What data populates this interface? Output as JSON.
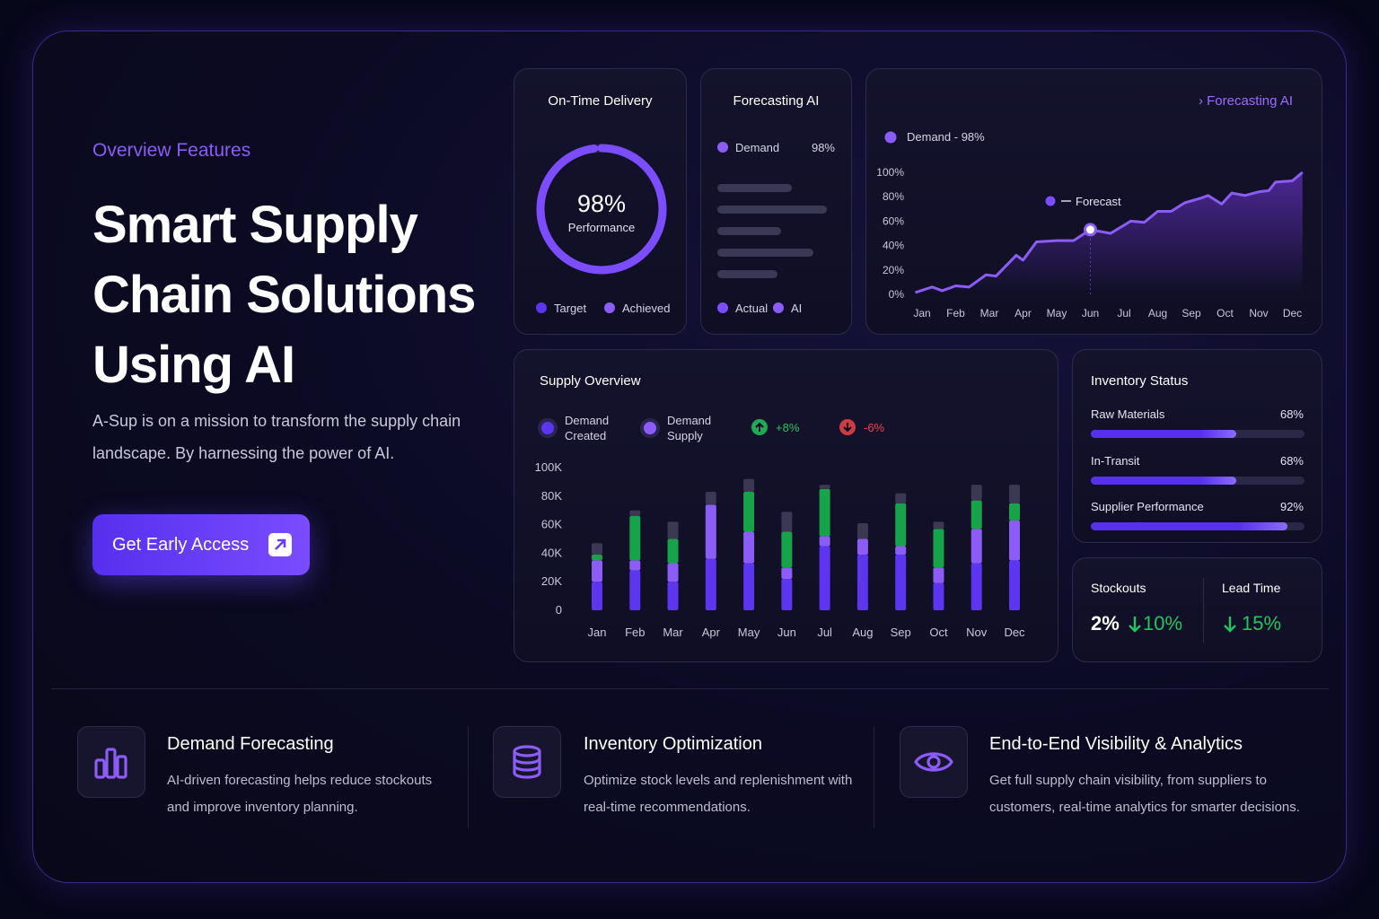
{
  "hero": {
    "eyebrow": "Overview Features",
    "title_lines": [
      "Smart Supply",
      "Chain Solutions",
      "Using AI"
    ],
    "description": "A-Sup is on a mission to transform the supply chain landscape. By harnessing the power of AI.",
    "cta": "Get Early Access"
  },
  "on_time_delivery": {
    "title": "On-Time Delivery",
    "value": 98,
    "value_label": "98%",
    "caption": "Performance",
    "color": "#7c4dff",
    "legend": [
      {
        "name": "Target",
        "color": "#5b35f0"
      },
      {
        "name": "Achieved",
        "color": "#8b5cf6"
      }
    ]
  },
  "forecasting_ai": {
    "title": "Forecasting AI",
    "metric": {
      "name": "Demand",
      "label": "98%",
      "color": "#8b5cf6"
    },
    "legend": [
      {
        "name": "Actual",
        "color": "#7c4dff"
      },
      {
        "name": "AI",
        "color": "#8b5cf6"
      }
    ]
  },
  "chart_data": [
    {
      "type": "line",
      "link": "Forecasting AI",
      "annotation": {
        "text": "Forecast",
        "x": 5,
        "y": 53
      },
      "x": [
        -0.2,
        0.3,
        0.6,
        1.0,
        1.4,
        1.9,
        2.2,
        2.8,
        3.0,
        3.4,
        4.0,
        4.5,
        5.0,
        5.6,
        6.2,
        6.6,
        7.0,
        7.4,
        7.8,
        8.3,
        8.5,
        8.9,
        9.2,
        9.6,
        10.0,
        10.3,
        10.5,
        11.0,
        11.3
      ],
      "series": [
        {
          "name": "Demand - 98%",
          "color": "#8b5cf6",
          "values": [
            1.5,
            6,
            3,
            7,
            6,
            16,
            15,
            32,
            28,
            43,
            44,
            44,
            53,
            50,
            60,
            59,
            68,
            68,
            75,
            79,
            81,
            74,
            83,
            81,
            84,
            85,
            92,
            93,
            100
          ]
        }
      ],
      "xlim": [
        -0.3,
        11.3
      ],
      "xticks": [
        {
          "value": 0,
          "label": "Jan"
        },
        {
          "value": 1,
          "label": "Feb"
        },
        {
          "value": 2,
          "label": "Mar"
        },
        {
          "value": 3,
          "label": "Apr"
        },
        {
          "value": 4,
          "label": "May"
        },
        {
          "value": 5,
          "label": "Jun"
        },
        {
          "value": 6,
          "label": "Jul"
        },
        {
          "value": 7,
          "label": "Aug"
        },
        {
          "value": 8,
          "label": "Sep"
        },
        {
          "value": 9,
          "label": "Oct"
        },
        {
          "value": 10,
          "label": "Nov"
        },
        {
          "value": 11,
          "label": "Dec"
        }
      ],
      "ylim": [
        0,
        100
      ],
      "yticks": [
        {
          "value": 0,
          "label": "0%"
        },
        {
          "value": 20,
          "label": "20%"
        },
        {
          "value": 40,
          "label": "40%"
        },
        {
          "value": 60,
          "label": "60%"
        },
        {
          "value": 80,
          "label": "80%"
        },
        {
          "value": 100,
          "label": "100%"
        }
      ]
    },
    {
      "type": "bar",
      "stacked": true,
      "title": "Supply Overview",
      "categories": [
        "Jan",
        "Feb",
        "Mar",
        "Apr",
        "May",
        "Jun",
        "Jul",
        "Aug",
        "Sep",
        "Oct",
        "Nov",
        "Dec"
      ],
      "series": [
        {
          "name": "Demand Created",
          "color": "#5b35f0",
          "values": [
            20000,
            28000,
            20000,
            36000,
            33000,
            22000,
            45000,
            39000,
            39000,
            19000,
            33000,
            35000
          ]
        },
        {
          "name": "Demand Supply",
          "color": "#8b5cf6",
          "values": [
            15000,
            7000,
            13000,
            38000,
            22000,
            8000,
            7000,
            11000,
            6000,
            11000,
            24000,
            28000
          ]
        },
        {
          "color": "#16a34a",
          "values": [
            4000,
            31000,
            17000,
            0,
            28000,
            25000,
            33000,
            0,
            30000,
            27000,
            20000,
            12000
          ]
        },
        {
          "color": "#3a3852",
          "values": [
            8000,
            4000,
            12000,
            9000,
            9000,
            14000,
            3000,
            11000,
            7000,
            5000,
            11000,
            13000
          ]
        }
      ],
      "badges": [
        {
          "label": "+8%",
          "color": "#22c55e",
          "direction": "up"
        },
        {
          "label": "-6%",
          "color": "#ef4444",
          "direction": "down"
        }
      ],
      "ylim": [
        0,
        100000
      ],
      "yticks": [
        0,
        {
          "value": 20000,
          "label": "20K"
        },
        {
          "value": 40000,
          "label": "40K"
        },
        {
          "value": 60000,
          "label": "60K"
        },
        {
          "value": 80000,
          "label": "80K"
        },
        {
          "value": 100000,
          "label": "100K"
        }
      ]
    }
  ],
  "inventory_status": {
    "title": "Inventory Status",
    "items": [
      {
        "name": "Raw Materials",
        "value": 68,
        "value_label": "68%"
      },
      {
        "name": "In-Transit",
        "value": 68,
        "value_label": "68%"
      },
      {
        "name": "Supplier Performance",
        "value": 92,
        "value_label": "92%"
      }
    ]
  },
  "kpis": [
    {
      "title": "Stockouts",
      "value_label": "2%",
      "change_label": "10%"
    },
    {
      "title": "Lead Time",
      "change_label": "15%"
    }
  ],
  "features": [
    {
      "title": "Demand Forecasting",
      "description": "AI-driven forecasting helps reduce stockouts and improve inventory planning."
    },
    {
      "title": "Inventory Optimization",
      "description": "Optimize stock levels and replenishment with real-time recommendations."
    },
    {
      "title": "End-to-End Visibility & Analytics",
      "description": "Get full supply chain visibility, from suppliers to customers, real-time analytics for smarter decisions."
    }
  ]
}
